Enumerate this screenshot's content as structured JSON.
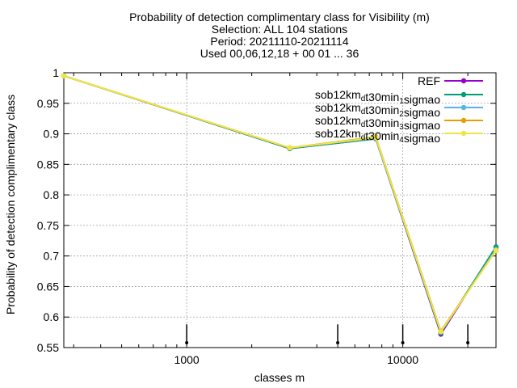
{
  "chart_data": {
    "type": "line",
    "title_lines": [
      "Probability of detection complimentary class  for Visibility (m)",
      "Selection: ALL    104 stations",
      "Period: 20211110-20211114",
      "Used 00,06,12,18 + 00 01 ... 36"
    ],
    "xlabel": "classes m",
    "ylabel": "Probability of detection complimentary class",
    "x_scale": "log",
    "xlim": [
      270,
      27000
    ],
    "ylim": [
      0.55,
      1.0
    ],
    "x_ticks": [
      {
        "value": 1000,
        "label": "1000"
      },
      {
        "value": 10000,
        "label": "10000"
      }
    ],
    "y_ticks": [
      {
        "value": 0.55,
        "label": "0.55"
      },
      {
        "value": 0.6,
        "label": "0.6"
      },
      {
        "value": 0.65,
        "label": "0.65"
      },
      {
        "value": 0.7,
        "label": "0.7"
      },
      {
        "value": 0.75,
        "label": "0.75"
      },
      {
        "value": 0.8,
        "label": "0.8"
      },
      {
        "value": 0.85,
        "label": "0.85"
      },
      {
        "value": 0.9,
        "label": "0.9"
      },
      {
        "value": 0.95,
        "label": "0.95"
      },
      {
        "value": 1.0,
        "label": "1"
      }
    ],
    "grid": true,
    "legend_position": "top-right",
    "x": [
      270,
      3000,
      7500,
      15000,
      27000
    ],
    "series": [
      {
        "name": "REF",
        "color": "#9400d3",
        "values": [
          0.995,
          0.876,
          0.892,
          0.572,
          0.714
        ]
      },
      {
        "name": "sob12km_dt30min_1sigmao",
        "color": "#009e73",
        "values": [
          0.995,
          0.876,
          0.892,
          0.574,
          0.715
        ]
      },
      {
        "name": "sob12km_dt30min_2sigmao",
        "color": "#56b4e9",
        "values": [
          0.995,
          0.877,
          0.893,
          0.576,
          0.711
        ]
      },
      {
        "name": "sob12km_dt30min_3sigmao",
        "color": "#e69f00",
        "values": [
          0.995,
          0.877,
          0.895,
          0.577,
          0.709
        ]
      },
      {
        "name": "sob12km_dt30min_4sigmao",
        "color": "#f0e442",
        "values": [
          0.995,
          0.877,
          0.894,
          0.576,
          0.709
        ]
      }
    ],
    "markers_x": [
      1000,
      5000,
      10000,
      20000
    ],
    "legend": [
      {
        "label": "REF",
        "sub": "",
        "tail": ""
      },
      {
        "label": "sob12km",
        "sub": "d",
        "tail": "t30min",
        "sub2": "1",
        "tail2": "sigmao"
      },
      {
        "label": "sob12km",
        "sub": "d",
        "tail": "t30min",
        "sub2": "2",
        "tail2": "sigmao"
      },
      {
        "label": "sob12km",
        "sub": "d",
        "tail": "t30min",
        "sub2": "3",
        "tail2": "sigmao"
      },
      {
        "label": "sob12km",
        "sub": "d",
        "tail": "t30min",
        "sub2": "4",
        "tail2": "sigmao"
      }
    ]
  }
}
